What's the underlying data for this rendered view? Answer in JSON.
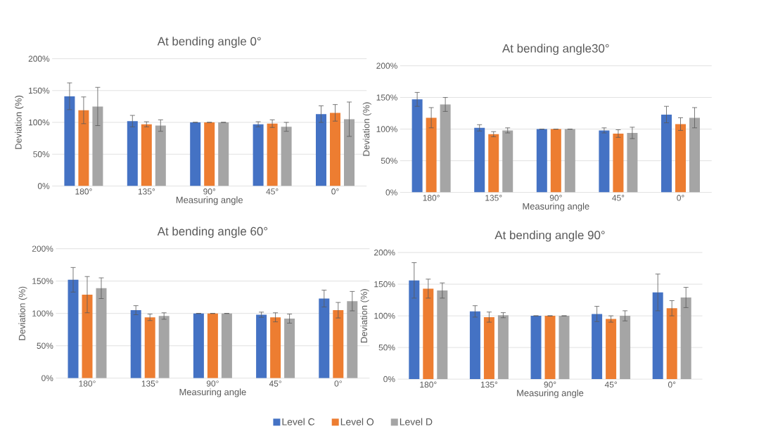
{
  "chart_data": [
    {
      "type": "bar",
      "title": "At bending angle 0°",
      "xlabel": "Measuring angle",
      "ylabel": "Deviation (%)",
      "categories": [
        "180°",
        "135°",
        "90°",
        "45°",
        "0°"
      ],
      "ylim": [
        0,
        200
      ],
      "yticks": [
        {
          "value": 0,
          "label": "0%"
        },
        {
          "value": 50,
          "label": "50%"
        },
        {
          "value": 100,
          "label": "100%"
        },
        {
          "value": 150,
          "label": "150%"
        },
        {
          "value": 200,
          "label": "200%"
        }
      ],
      "grid": "y",
      "series": [
        {
          "color": "#4472c4",
          "values": [
            141,
            102,
            100,
            97,
            113
          ],
          "errors": [
            21,
            9,
            0,
            4,
            13
          ]
        },
        {
          "color": "#ed7d31",
          "values": [
            119,
            97,
            100,
            98,
            115
          ],
          "errors": [
            21,
            4,
            0,
            6,
            13
          ]
        },
        {
          "color": "#a5a5a5",
          "values": [
            125,
            95,
            100,
            93,
            105
          ],
          "errors": [
            30,
            9,
            0,
            7,
            27
          ]
        }
      ]
    },
    {
      "type": "bar",
      "title": "At bending angle30°",
      "xlabel": "Measuring angle",
      "ylabel": "Deviation (%)",
      "categories": [
        "180°",
        "135°",
        "90°",
        "45°",
        "0°"
      ],
      "ylim": [
        0,
        200
      ],
      "yticks": [
        {
          "value": 0,
          "label": "0%"
        },
        {
          "value": 50,
          "label": "50%"
        },
        {
          "value": 100,
          "label": "100%"
        },
        {
          "value": 150,
          "label": "150%"
        },
        {
          "value": 200,
          "label": "200%"
        }
      ],
      "grid": "y",
      "series": [
        {
          "color": "#4472c4",
          "values": [
            147,
            102,
            100,
            98,
            123
          ],
          "errors": [
            11,
            5,
            0,
            4,
            13
          ]
        },
        {
          "color": "#ed7d31",
          "values": [
            118,
            92,
            100,
            93,
            108
          ],
          "errors": [
            16,
            4,
            0,
            6,
            10
          ]
        },
        {
          "color": "#a5a5a5",
          "values": [
            139,
            98,
            100,
            94,
            118
          ],
          "errors": [
            11,
            4,
            0,
            9,
            16
          ]
        }
      ]
    },
    {
      "type": "bar",
      "title": "At bending angle 60°",
      "xlabel": "Measuring angle",
      "ylabel": "Deviation (%)",
      "categories": [
        "180°",
        "135°",
        "90°",
        "45°",
        "0°"
      ],
      "ylim": [
        0,
        200
      ],
      "yticks": [
        {
          "value": 0,
          "label": "0%"
        },
        {
          "value": 50,
          "label": "50%"
        },
        {
          "value": 100,
          "label": "100%"
        },
        {
          "value": 150,
          "label": "150%"
        },
        {
          "value": 200,
          "label": "200%"
        }
      ],
      "grid": "y",
      "series": [
        {
          "color": "#4472c4",
          "values": [
            152,
            105,
            100,
            98,
            123
          ],
          "errors": [
            19,
            7,
            0,
            4,
            13
          ]
        },
        {
          "color": "#ed7d31",
          "values": [
            129,
            94,
            100,
            94,
            105
          ],
          "errors": [
            28,
            5,
            0,
            7,
            12
          ]
        },
        {
          "color": "#a5a5a5",
          "values": [
            139,
            96,
            100,
            92,
            119
          ],
          "errors": [
            16,
            5,
            0,
            7,
            15
          ]
        }
      ]
    },
    {
      "type": "bar",
      "title": "At bending angle  90°",
      "xlabel": "Measuring angle",
      "ylabel": "Deviation (%)",
      "categories": [
        "180°",
        "135°",
        "90°",
        "45°",
        "0°"
      ],
      "ylim": [
        0,
        200
      ],
      "yticks": [
        {
          "value": 0,
          "label": "0%"
        },
        {
          "value": 50,
          "label": "50%"
        },
        {
          "value": 100,
          "label": "100%"
        },
        {
          "value": 150,
          "label": "150%"
        },
        {
          "value": 200,
          "label": "200%"
        }
      ],
      "grid": "y",
      "legend": "bottom",
      "series": [
        {
          "name": "Level C",
          "color": "#4472c4",
          "values": [
            156,
            107,
            100,
            103,
            137
          ],
          "errors": [
            28,
            9,
            0,
            12,
            29
          ]
        },
        {
          "name": "Level O",
          "color": "#ed7d31",
          "values": [
            143,
            98,
            100,
            95,
            112
          ],
          "errors": [
            15,
            8,
            0,
            5,
            12
          ]
        },
        {
          "name": "Level D",
          "color": "#a5a5a5",
          "values": [
            140,
            101,
            100,
            100,
            129
          ],
          "errors": [
            12,
            4,
            0,
            8,
            16
          ]
        }
      ]
    }
  ]
}
